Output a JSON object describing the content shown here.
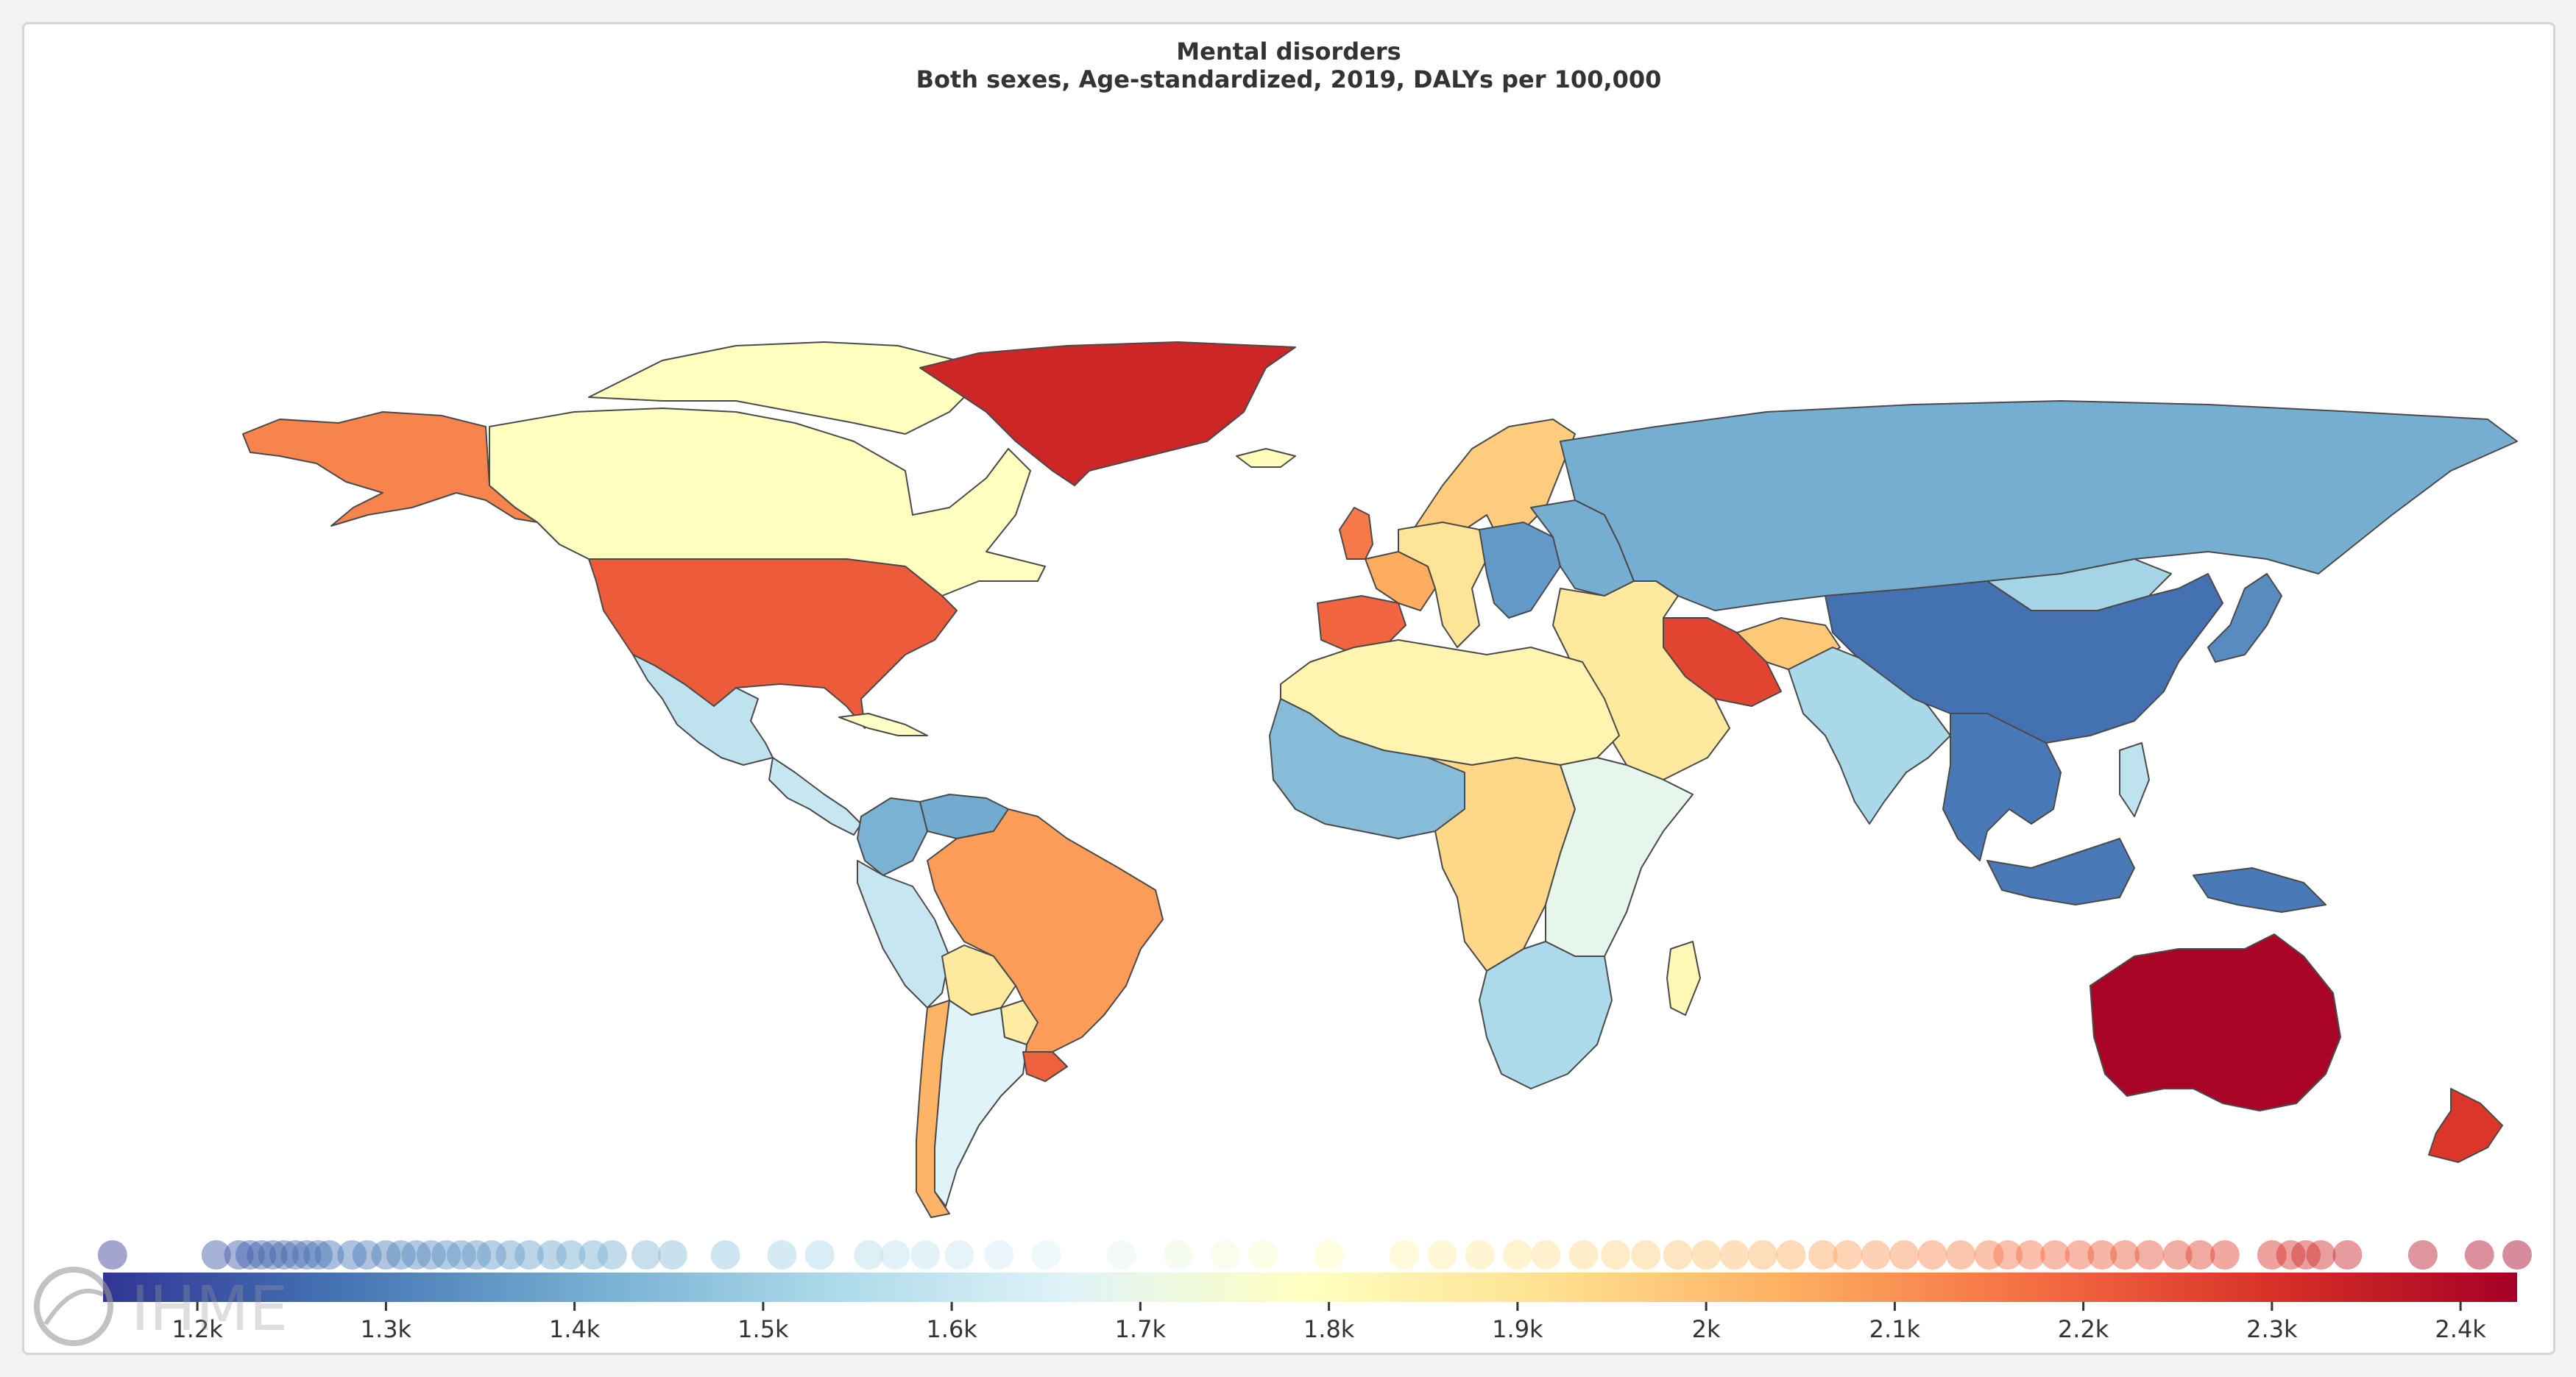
{
  "title": "Mental disorders",
  "subtitle": "Both sexes, Age-standardized, 2019, DALYs per 100,000",
  "watermark": "IHME",
  "colors": {
    "land_missing": "#c8c8c8",
    "border": "#4a4a4a"
  },
  "chart_data": {
    "type": "choropleth",
    "scale": {
      "min": 1150,
      "max": 2430,
      "stops": [
        "#313695",
        "#4575b4",
        "#74add1",
        "#abd9e9",
        "#e0f3f8",
        "#ffffbf",
        "#fee090",
        "#fdae61",
        "#f46d43",
        "#d73027",
        "#a50026"
      ]
    },
    "ticks": [
      {
        "value": 1200,
        "label": "1.2k"
      },
      {
        "value": 1300,
        "label": "1.3k"
      },
      {
        "value": 1400,
        "label": "1.4k"
      },
      {
        "value": 1500,
        "label": "1.5k"
      },
      {
        "value": 1600,
        "label": "1.6k"
      },
      {
        "value": 1700,
        "label": "1.7k"
      },
      {
        "value": 1800,
        "label": "1.8k"
      },
      {
        "value": 1900,
        "label": "1.9k"
      },
      {
        "value": 2000,
        "label": "2k"
      },
      {
        "value": 2100,
        "label": "2.1k"
      },
      {
        "value": 2200,
        "label": "2.2k"
      },
      {
        "value": 2300,
        "label": "2.3k"
      },
      {
        "value": 2400,
        "label": "2.4k"
      }
    ],
    "distribution_values": [
      1155,
      1210,
      1222,
      1228,
      1234,
      1240,
      1246,
      1252,
      1258,
      1264,
      1270,
      1282,
      1290,
      1300,
      1308,
      1316,
      1324,
      1332,
      1340,
      1348,
      1356,
      1366,
      1376,
      1388,
      1398,
      1410,
      1420,
      1438,
      1452,
      1480,
      1510,
      1530,
      1556,
      1570,
      1586,
      1604,
      1625,
      1650,
      1690,
      1720,
      1745,
      1765,
      1800,
      1840,
      1860,
      1880,
      1900,
      1915,
      1935,
      1952,
      1968,
      1985,
      2000,
      2015,
      2030,
      2045,
      2062,
      2075,
      2090,
      2105,
      2120,
      2135,
      2150,
      2160,
      2172,
      2185,
      2198,
      2210,
      2222,
      2235,
      2250,
      2262,
      2275,
      2300,
      2310,
      2318,
      2326,
      2340,
      2380,
      2410,
      2430
    ],
    "regions": [
      {
        "name": "Alaska",
        "value": 2130
      },
      {
        "name": "Canada",
        "value": 1790
      },
      {
        "name": "Canadian Arctic Islands",
        "value": 1790
      },
      {
        "name": "Greenland",
        "value": 2330
      },
      {
        "name": "United States",
        "value": 2210
      },
      {
        "name": "Mexico",
        "value": 1580
      },
      {
        "name": "Central America",
        "value": 1600
      },
      {
        "name": "Cuba",
        "value": 1780
      },
      {
        "name": "Colombia",
        "value": 1420
      },
      {
        "name": "Venezuela",
        "value": 1400
      },
      {
        "name": "Ecuador and Peru",
        "value": 1600
      },
      {
        "name": "Brazil",
        "value": 2080
      },
      {
        "name": "Bolivia",
        "value": 1880
      },
      {
        "name": "Chile",
        "value": 2030
      },
      {
        "name": "Argentina",
        "value": 1660
      },
      {
        "name": "Paraguay",
        "value": 1870
      },
      {
        "name": "Uruguay",
        "value": 2200
      },
      {
        "name": "Scandinavia",
        "value": 1970
      },
      {
        "name": "United Kingdom",
        "value": 2150
      },
      {
        "name": "Iberia",
        "value": 2190
      },
      {
        "name": "France",
        "value": 2050
      },
      {
        "name": "Western Europe",
        "value": 1900
      },
      {
        "name": "Central Europe",
        "value": 1360
      },
      {
        "name": "Eastern Europe",
        "value": 1410
      },
      {
        "name": "Russia and Central Asia",
        "value": 1410
      },
      {
        "name": "Iran",
        "value": 2260
      },
      {
        "name": "Middle East",
        "value": 1880
      },
      {
        "name": "Afghanistan",
        "value": 1980
      },
      {
        "name": "South Asia",
        "value": 1530
      },
      {
        "name": "China",
        "value": 1270
      },
      {
        "name": "Mongolia",
        "value": 1520
      },
      {
        "name": "Southeast Asia",
        "value": 1290
      },
      {
        "name": "Japan",
        "value": 1330
      },
      {
        "name": "Indonesia",
        "value": 1290
      },
      {
        "name": "Papua New Guinea",
        "value": 1290
      },
      {
        "name": "Philippines",
        "value": 1580
      },
      {
        "name": "North Africa",
        "value": 1830
      },
      {
        "name": "West Africa",
        "value": 1450
      },
      {
        "name": "Central Africa",
        "value": 1940
      },
      {
        "name": "East Africa",
        "value": 1690
      },
      {
        "name": "Southern Africa",
        "value": 1540
      },
      {
        "name": "Madagascar",
        "value": 1820
      },
      {
        "name": "Australia",
        "value": 2420
      },
      {
        "name": "New Zealand",
        "value": 2290
      },
      {
        "name": "Iceland",
        "value": 1800
      }
    ]
  }
}
